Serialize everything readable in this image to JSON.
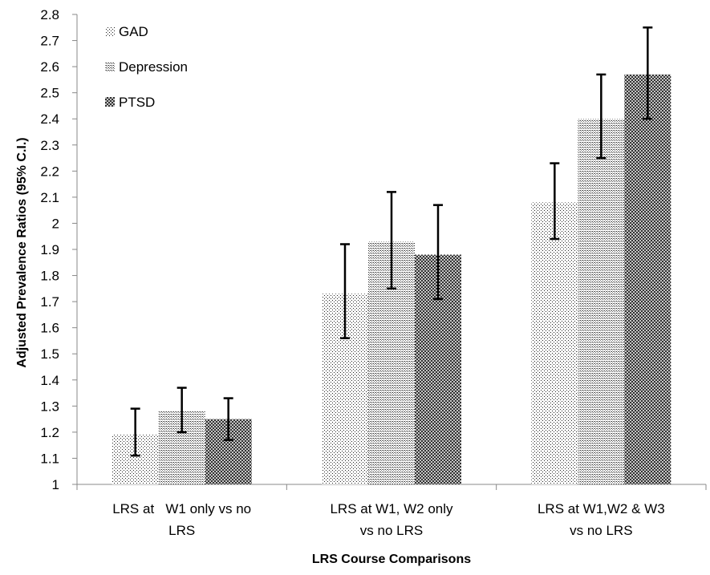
{
  "chart_data": {
    "type": "bar",
    "xlabel": "LRS Course Comparisons",
    "ylabel": "Adjusted Prevalence Ratios (95% C.I.)",
    "ylim": [
      1,
      2.8
    ],
    "ytick_step": 0.1,
    "y_ticks": [
      "1",
      "1.1",
      "1.2",
      "1.3",
      "1.4",
      "1.5",
      "1.6",
      "1.7",
      "1.8",
      "1.9",
      "2",
      "2.1",
      "2.2",
      "2.3",
      "2.4",
      "2.5",
      "2.6",
      "2.7",
      "2.8"
    ],
    "grid": false,
    "legend_position": "top-left",
    "categories": [
      [
        "LRS at   W1 only vs no",
        "LRS"
      ],
      [
        "LRS at W1, W2 only",
        "vs no LRS"
      ],
      [
        "LRS at W1,W2 & W3",
        "vs no LRS"
      ]
    ],
    "series": [
      {
        "name": "GAD",
        "pattern": "dots-light",
        "values": [
          1.19,
          1.73,
          2.08
        ],
        "ci_low": [
          1.11,
          1.56,
          1.94
        ],
        "ci_high": [
          1.29,
          1.92,
          2.23
        ]
      },
      {
        "name": "Depression",
        "pattern": "dots-medium",
        "values": [
          1.28,
          1.93,
          2.4
        ],
        "ci_low": [
          1.2,
          1.75,
          2.25
        ],
        "ci_high": [
          1.37,
          2.12,
          2.57
        ]
      },
      {
        "name": "PTSD",
        "pattern": "crosshatch",
        "values": [
          1.25,
          1.88,
          2.57
        ],
        "ci_low": [
          1.17,
          1.71,
          2.4
        ],
        "ci_high": [
          1.33,
          2.07,
          2.75
        ]
      }
    ]
  }
}
